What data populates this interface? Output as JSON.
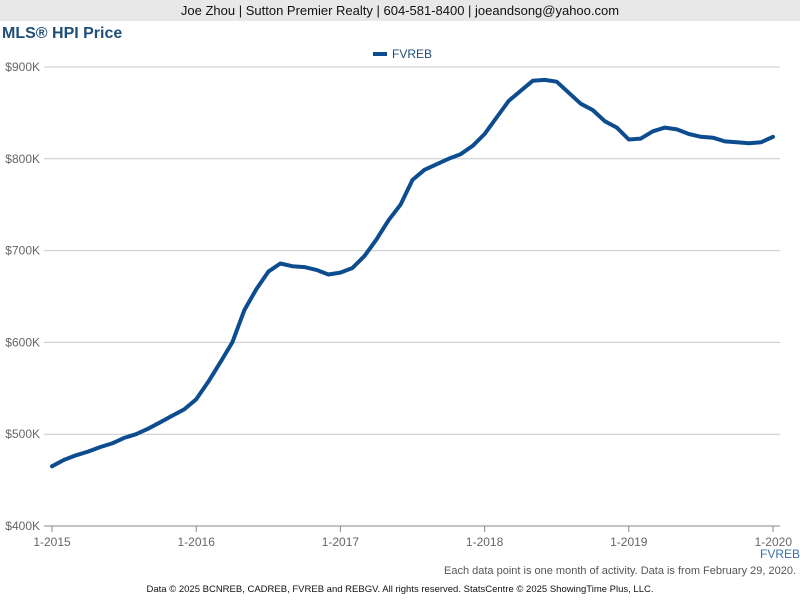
{
  "header": {
    "contact": "Joe Zhou | Sutton Premier Realty | 604-581-8400 | joeandsong@yahoo.com"
  },
  "colors": {
    "series": "#0d4c8f",
    "grid": "#c8c8c8",
    "title": "#1f4e79"
  },
  "chart_data": {
    "type": "line",
    "title": "MLS® HPI Price",
    "legend": {
      "position": "top-center",
      "entries": [
        "FVREB"
      ]
    },
    "series_end_label": "FVREB",
    "grid": true,
    "ylim": [
      400000,
      900000
    ],
    "y_ticks": [
      {
        "value": 400000,
        "label": "$400K"
      },
      {
        "value": 500000,
        "label": "$500K"
      },
      {
        "value": 600000,
        "label": "$600K"
      },
      {
        "value": 700000,
        "label": "$700K"
      },
      {
        "value": 800000,
        "label": "$800K"
      },
      {
        "value": 900000,
        "label": "$900K"
      }
    ],
    "x_ticks": [
      {
        "index": 0,
        "label": "1-2015"
      },
      {
        "index": 12,
        "label": "1-2016"
      },
      {
        "index": 24,
        "label": "1-2017"
      },
      {
        "index": 36,
        "label": "1-2018"
      },
      {
        "index": 48,
        "label": "1-2019"
      },
      {
        "index": 60,
        "label": "1-2020"
      }
    ],
    "series": [
      {
        "name": "FVREB",
        "values": [
          465000,
          472000,
          477000,
          481000,
          486000,
          490000,
          496000,
          500000,
          506000,
          513000,
          520000,
          527000,
          538000,
          557000,
          578000,
          600000,
          635000,
          658000,
          677000,
          686000,
          683000,
          682000,
          679000,
          674000,
          676000,
          681000,
          694000,
          712000,
          733000,
          750000,
          777000,
          788000,
          794000,
          800000,
          805000,
          814000,
          827000,
          845000,
          863000,
          874000,
          885000,
          886000,
          884000,
          872000,
          860000,
          853000,
          841000,
          834000,
          821000,
          822000,
          830000,
          834000,
          832000,
          827000,
          824000,
          823000,
          819000,
          818000,
          817000,
          818000,
          824000
        ]
      }
    ]
  },
  "note": "Each data point is one month of activity. Data is from February 29, 2020.",
  "footer": "Data © 2025 BCNREB, CADREB, FVREB and REBGV. All rights reserved. StatsCentre © 2025 ShowingTime Plus, LLC."
}
